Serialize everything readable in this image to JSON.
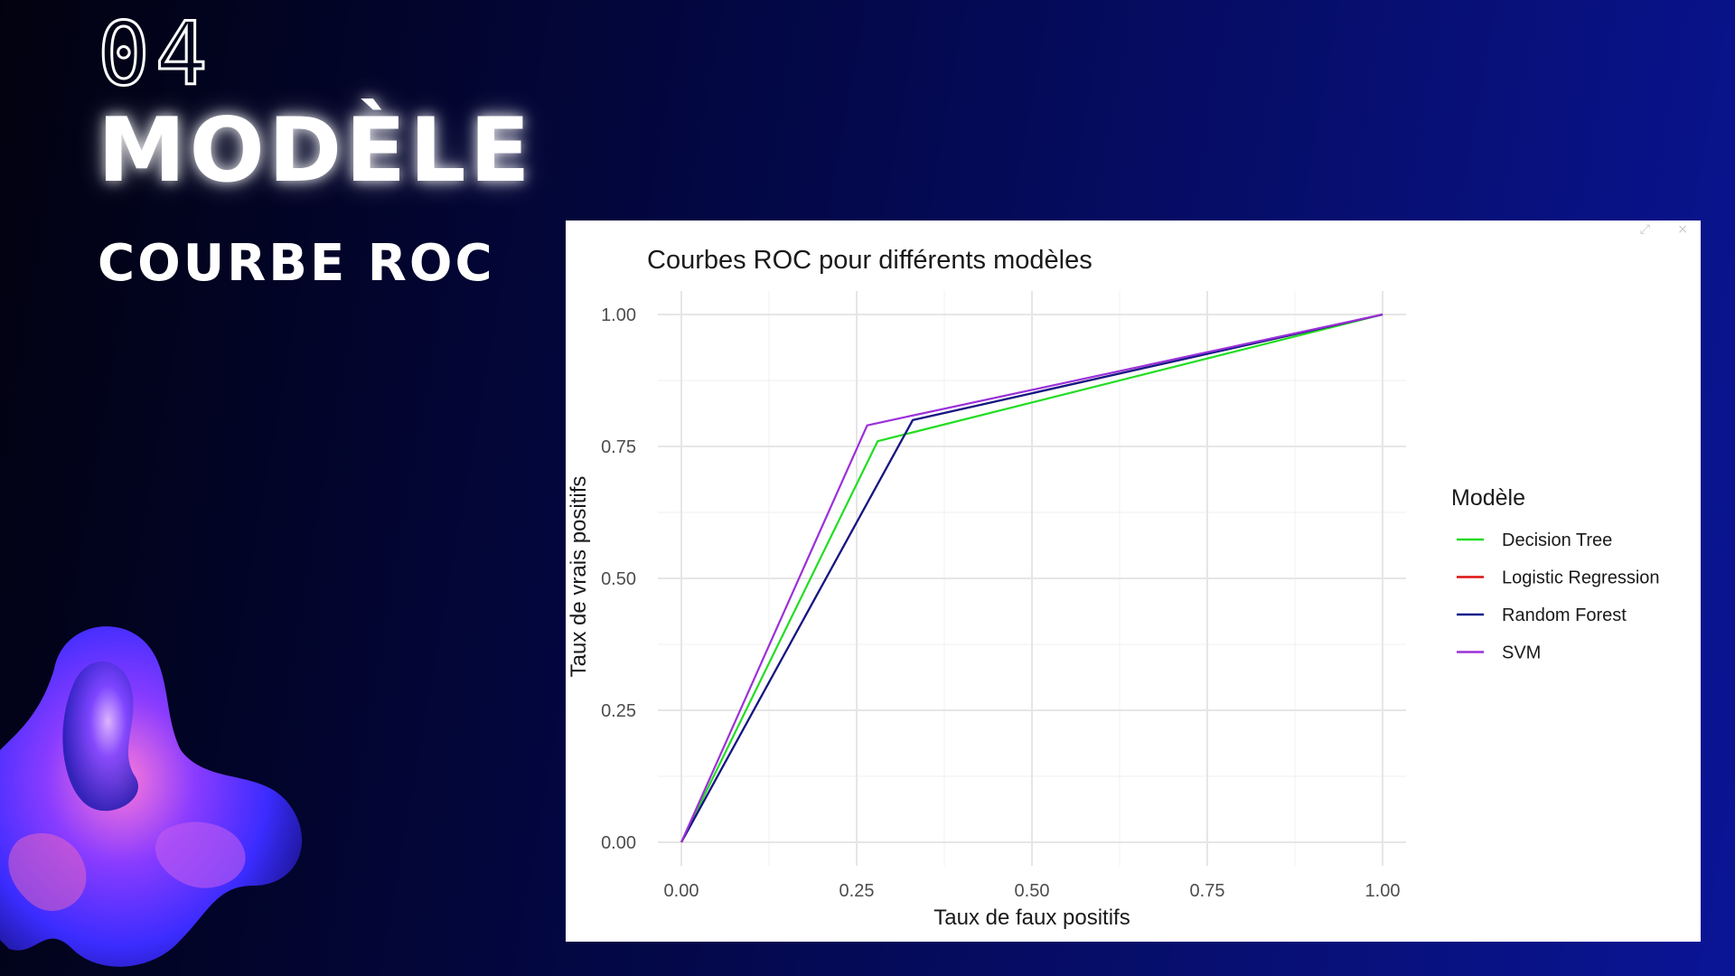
{
  "slide": {
    "number": "04",
    "title": "MODÈLE",
    "subtitle": "COURBE ROC"
  },
  "panel": {
    "icons": [
      "expand-icon",
      "close-icon"
    ],
    "close_glyph": "×"
  },
  "colors": {
    "background_start": "#02020f",
    "background_end": "#0a1596",
    "Decision Tree": "#22dd22",
    "Logistic Regression": "#dd1111",
    "Random Forest": "#0b1a8a",
    "SVM": "#9b30d9"
  },
  "chart_data": {
    "type": "line",
    "title": "Courbes ROC pour différents modèles",
    "xlabel": "Taux de faux positifs",
    "ylabel": "Taux de vrais positifs",
    "xlim": [
      0,
      1
    ],
    "ylim": [
      0,
      1
    ],
    "xticks": [
      "0.00",
      "0.25",
      "0.50",
      "0.75",
      "1.00"
    ],
    "yticks": [
      "0.00",
      "0.25",
      "0.50",
      "0.75",
      "1.00"
    ],
    "grid": true,
    "legend_title": "Modèle",
    "legend_position": "right",
    "series": [
      {
        "name": "Decision Tree",
        "x": [
          0,
          0.28,
          1
        ],
        "y": [
          0,
          0.76,
          1
        ]
      },
      {
        "name": "Logistic Regression",
        "x": [
          0,
          0.33,
          1
        ],
        "y": [
          0,
          0.8,
          1
        ]
      },
      {
        "name": "Random Forest",
        "x": [
          0,
          0.33,
          1
        ],
        "y": [
          0,
          0.8,
          1
        ]
      },
      {
        "name": "SVM",
        "x": [
          0,
          0.265,
          1
        ],
        "y": [
          0,
          0.79,
          1
        ]
      }
    ]
  }
}
